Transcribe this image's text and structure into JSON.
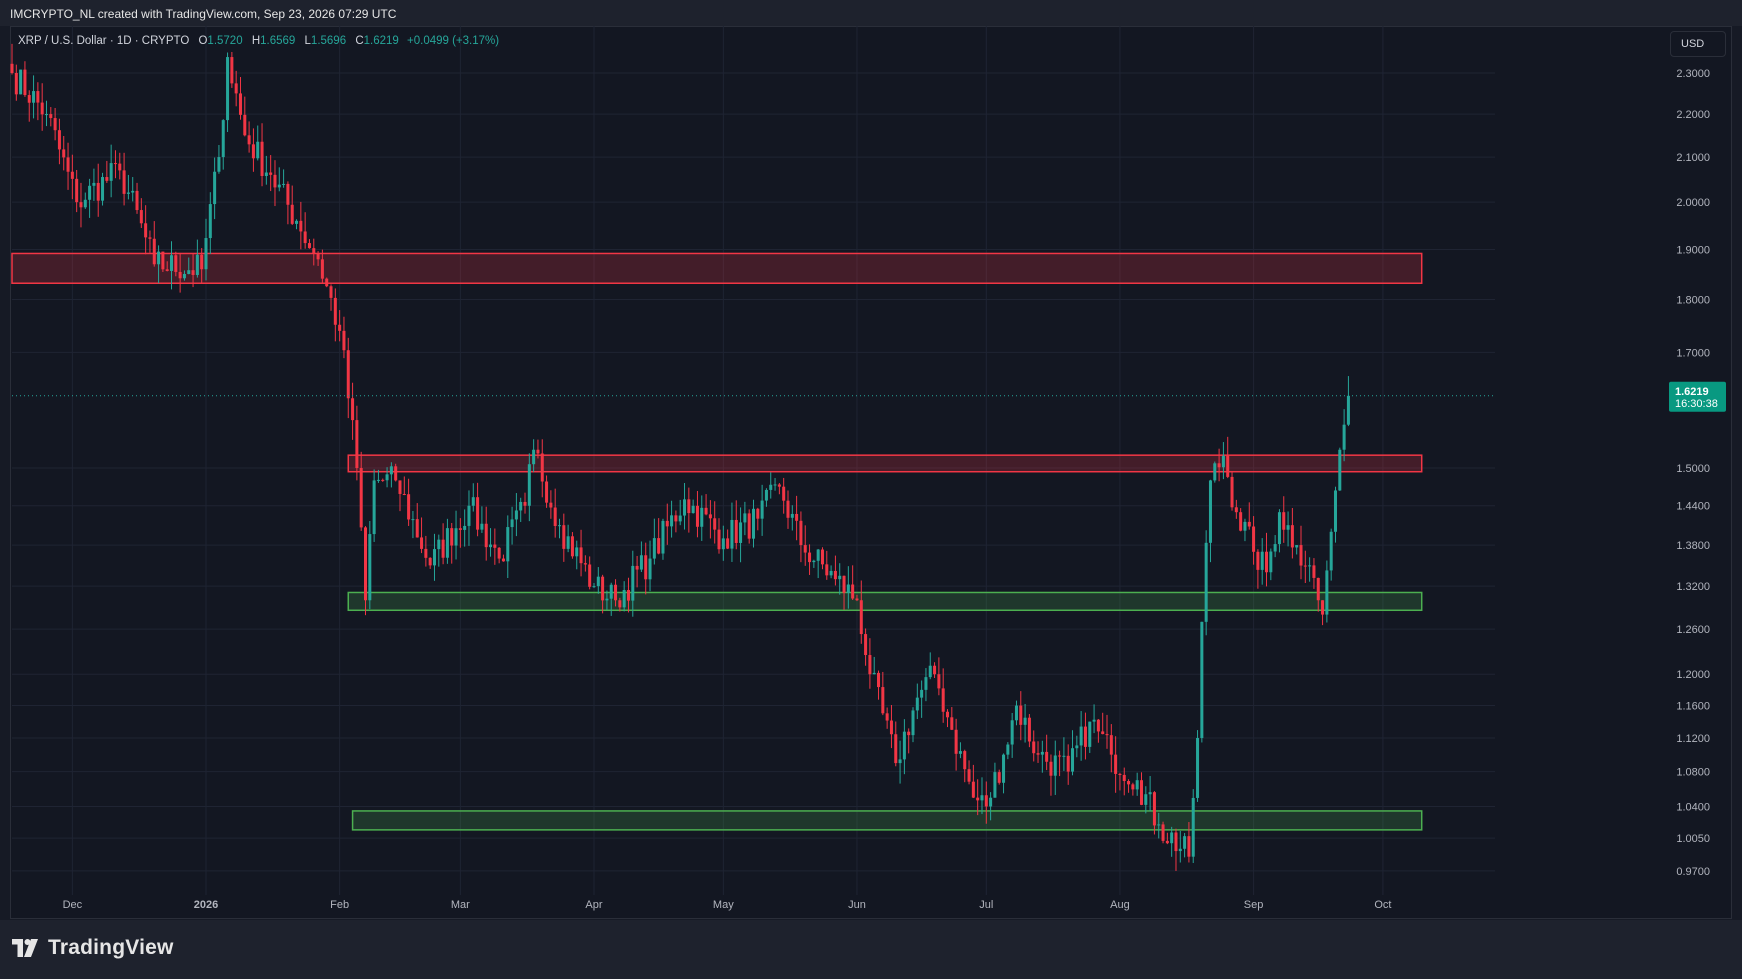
{
  "header": {
    "caption": "IMCRYPTO_NL created with TradingView.com, Sep 23, 2026 07:29 UTC"
  },
  "legend": {
    "symbol": "XRP / U.S. Dollar · 1D · CRYPTO",
    "o_label": "O",
    "o_value": "1.5720",
    "h_label": "H",
    "h_value": "1.6569",
    "l_label": "L",
    "l_value": "1.5696",
    "c_label": "C",
    "c_value": "1.6219",
    "change": "+0.0499 (+3.17%)"
  },
  "currency_button": "USD",
  "price_badge": {
    "price": "1.6219",
    "countdown": "16:30:38",
    "color": "#089981"
  },
  "footer": {
    "brand": "TradingView"
  },
  "colors": {
    "up": "#26a69a",
    "down": "#f23645",
    "resistance_zone": "#f23645",
    "support_zone": "#4caf50",
    "grid": "#1f2433",
    "background": "#131722"
  },
  "chart_data": {
    "type": "candlestick",
    "y_scale": "log",
    "ylim": [
      0.945,
      2.42
    ],
    "y_ticks": [
      "2.3000",
      "2.2000",
      "2.1000",
      "2.0000",
      "1.9000",
      "1.8000",
      "1.7000",
      "1.5000",
      "1.4400",
      "1.3800",
      "1.3200",
      "1.2600",
      "1.2000",
      "1.1600",
      "1.1200",
      "1.0800",
      "1.0400",
      "1.0050",
      "0.9700"
    ],
    "x_tick_labels": [
      {
        "label": "Dec",
        "date": "2025-12-01"
      },
      {
        "label": "2026",
        "date": "2026-01-01"
      },
      {
        "label": "Feb",
        "date": "2026-02-01"
      },
      {
        "label": "Mar",
        "date": "2026-03-01"
      },
      {
        "label": "Apr",
        "date": "2026-04-01"
      },
      {
        "label": "May",
        "date": "2026-05-01"
      },
      {
        "label": "Jun",
        "date": "2026-06-01"
      },
      {
        "label": "Jul",
        "date": "2026-07-01"
      },
      {
        "label": "Aug",
        "date": "2026-08-01"
      },
      {
        "label": "Sep",
        "date": "2026-09-01"
      },
      {
        "label": "Oct",
        "date": "2026-10-01"
      }
    ],
    "x_range": [
      "2025-11-17",
      "2026-10-27"
    ],
    "last_price": 1.6219,
    "zones": [
      {
        "kind": "resistance",
        "from_date": "2025-11-17",
        "to_date": "2026-10-10",
        "low": 1.832,
        "high": 1.892
      },
      {
        "kind": "resistance",
        "from_date": "2026-02-03",
        "to_date": "2026-10-10",
        "low": 1.494,
        "high": 1.521
      },
      {
        "kind": "support",
        "from_date": "2026-02-03",
        "to_date": "2026-10-10",
        "low": 1.286,
        "high": 1.311
      },
      {
        "kind": "support",
        "from_date": "2026-02-04",
        "to_date": "2026-10-10",
        "low": 1.014,
        "high": 1.035
      }
    ],
    "key_points": [
      {
        "date": "2025-11-17",
        "close": 2.3
      },
      {
        "date": "2025-11-25",
        "close": 2.2
      },
      {
        "date": "2025-12-02",
        "close": 2.0
      },
      {
        "date": "2025-12-12",
        "close": 2.07
      },
      {
        "date": "2025-12-20",
        "close": 1.87
      },
      {
        "date": "2025-12-31",
        "close": 1.86
      },
      {
        "date": "2026-01-04",
        "close": 2.1
      },
      {
        "date": "2026-01-06",
        "close": 2.34
      },
      {
        "date": "2026-01-10",
        "close": 2.15
      },
      {
        "date": "2026-01-16",
        "close": 2.06
      },
      {
        "date": "2026-01-22",
        "close": 1.96
      },
      {
        "date": "2026-01-27",
        "close": 1.88
      },
      {
        "date": "2026-02-01",
        "close": 1.74
      },
      {
        "date": "2026-02-05",
        "close": 1.5
      },
      {
        "date": "2026-02-07",
        "close": 1.3
      },
      {
        "date": "2026-02-09",
        "close": 1.48
      },
      {
        "date": "2026-02-14",
        "close": 1.48
      },
      {
        "date": "2026-02-22",
        "close": 1.35
      },
      {
        "date": "2026-03-03",
        "close": 1.44
      },
      {
        "date": "2026-03-10",
        "close": 1.36
      },
      {
        "date": "2026-03-16",
        "close": 1.44
      },
      {
        "date": "2026-03-18",
        "close": 1.53
      },
      {
        "date": "2026-03-24",
        "close": 1.41
      },
      {
        "date": "2026-04-01",
        "close": 1.32
      },
      {
        "date": "2026-04-06",
        "close": 1.3
      },
      {
        "date": "2026-04-14",
        "close": 1.36
      },
      {
        "date": "2026-04-22",
        "close": 1.45
      },
      {
        "date": "2026-05-01",
        "close": 1.39
      },
      {
        "date": "2026-05-09",
        "close": 1.42
      },
      {
        "date": "2026-05-14",
        "close": 1.47
      },
      {
        "date": "2026-05-19",
        "close": 1.38
      },
      {
        "date": "2026-05-27",
        "close": 1.33
      },
      {
        "date": "2026-06-01",
        "close": 1.3
      },
      {
        "date": "2026-06-04",
        "close": 1.2
      },
      {
        "date": "2026-06-10",
        "close": 1.09
      },
      {
        "date": "2026-06-15",
        "close": 1.17
      },
      {
        "date": "2026-06-19",
        "close": 1.2
      },
      {
        "date": "2026-06-23",
        "close": 1.13
      },
      {
        "date": "2026-06-28",
        "close": 1.05
      },
      {
        "date": "2026-07-01",
        "close": 1.04
      },
      {
        "date": "2026-07-05",
        "close": 1.1
      },
      {
        "date": "2026-07-08",
        "close": 1.16
      },
      {
        "date": "2026-07-13",
        "close": 1.1
      },
      {
        "date": "2026-07-20",
        "close": 1.08
      },
      {
        "date": "2026-07-25",
        "close": 1.14
      },
      {
        "date": "2026-07-30",
        "close": 1.1
      },
      {
        "date": "2026-08-05",
        "close": 1.07
      },
      {
        "date": "2026-08-10",
        "close": 1.02
      },
      {
        "date": "2026-08-17",
        "close": 0.985
      },
      {
        "date": "2026-08-19",
        "close": 1.12
      },
      {
        "date": "2026-08-20",
        "close": 1.27
      },
      {
        "date": "2026-08-22",
        "close": 1.48
      },
      {
        "date": "2026-08-25",
        "close": 1.52
      },
      {
        "date": "2026-08-28",
        "close": 1.43
      },
      {
        "date": "2026-09-01",
        "close": 1.37
      },
      {
        "date": "2026-09-04",
        "close": 1.34
      },
      {
        "date": "2026-09-07",
        "close": 1.43
      },
      {
        "date": "2026-09-11",
        "close": 1.38
      },
      {
        "date": "2026-09-14",
        "close": 1.35
      },
      {
        "date": "2026-09-16",
        "close": 1.3
      },
      {
        "date": "2026-09-17",
        "close": 1.28
      },
      {
        "date": "2026-09-19",
        "close": 1.4
      },
      {
        "date": "2026-09-21",
        "close": 1.53
      },
      {
        "date": "2026-09-22",
        "close": 1.572
      },
      {
        "date": "2026-09-23",
        "open": 1.572,
        "high": 1.6569,
        "low": 1.5696,
        "close": 1.6219
      }
    ]
  }
}
